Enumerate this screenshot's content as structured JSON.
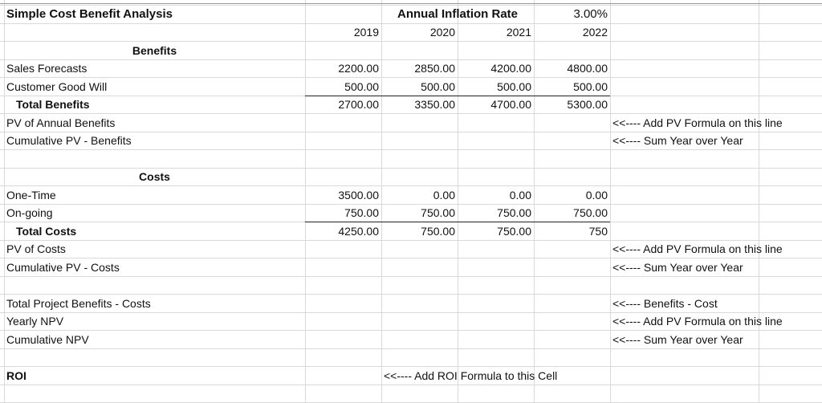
{
  "title": "Simple Cost Benefit Analysis",
  "inflation": {
    "label": "Annual Inflation Rate",
    "value": "3.00%"
  },
  "years": [
    2019,
    2020,
    2021,
    2022
  ],
  "benefits": {
    "heading": "Benefits",
    "lines": [
      {
        "label": "Sales Forecasts",
        "values": [
          "2200.00",
          "2850.00",
          "4200.00",
          "4800.00"
        ]
      },
      {
        "label": "Customer Good Will",
        "values": [
          "500.00",
          "500.00",
          "500.00",
          "500.00"
        ]
      }
    ],
    "total": {
      "label": "Total Benefits",
      "values": [
        "2700.00",
        "3350.00",
        "4700.00",
        "5300.00"
      ]
    },
    "pv": {
      "label": "PV of Annual Benefits",
      "note": "<<---- Add PV Formula on this line"
    },
    "cumulative": {
      "label": "Cumulative PV - Benefits",
      "note": "<<---- Sum Year over Year"
    }
  },
  "costs": {
    "heading": "Costs",
    "lines": [
      {
        "label": "One-Time",
        "values": [
          "3500.00",
          "0.00",
          "0.00",
          "0.00"
        ]
      },
      {
        "label": "On-going",
        "values": [
          "750.00",
          "750.00",
          "750.00",
          "750.00"
        ]
      }
    ],
    "total": {
      "label": "Total Costs",
      "values": [
        "4250.00",
        "750.00",
        "750.00",
        "750"
      ]
    },
    "pv": {
      "label": "PV of Costs",
      "note": "<<---- Add PV Formula on this line"
    },
    "cumulative": {
      "label": "Cumulative PV - Costs",
      "note": "<<---- Sum Year over Year"
    }
  },
  "npv": [
    {
      "label": "Total Project Benefits - Costs",
      "note": "<<---- Benefits - Cost"
    },
    {
      "label": "Yearly NPV",
      "note": "<<---- Add PV Formula on this line"
    },
    {
      "label": "Cumulative NPV",
      "note": "<<---- Sum Year over Year"
    }
  ],
  "roi": {
    "label": "ROI",
    "note": "<<---- Add ROI Formula to this Cell"
  }
}
